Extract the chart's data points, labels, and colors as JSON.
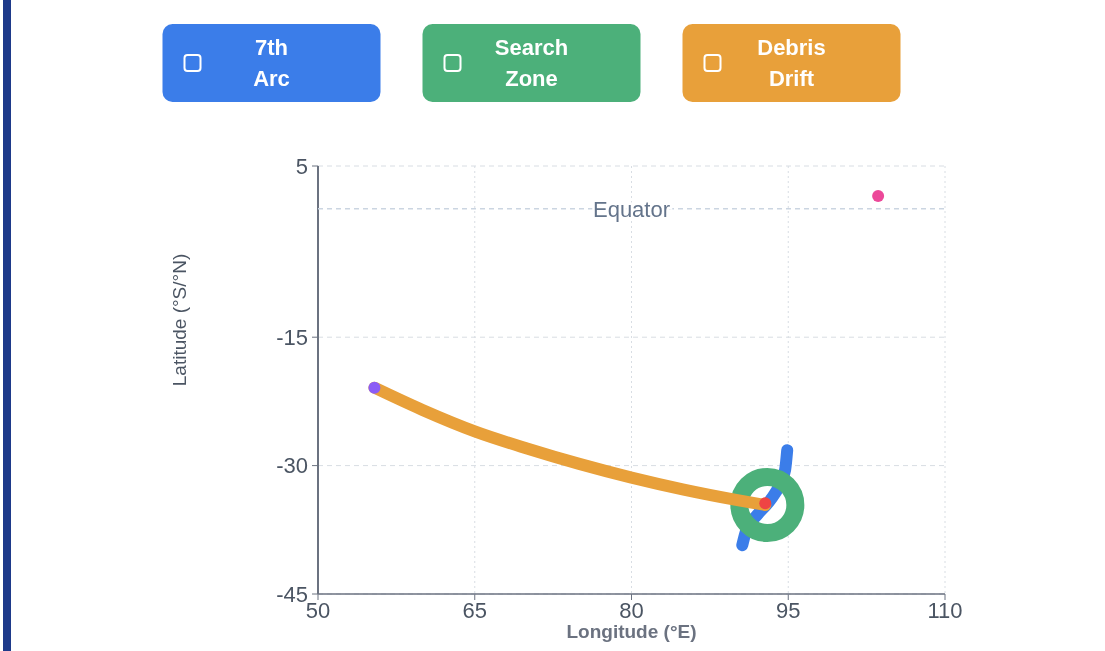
{
  "chart_data": {
    "type": "line",
    "xlabel": "Longitude (°E)",
    "ylabel": "Latitude (°S/°N)",
    "xlim": [
      50,
      110
    ],
    "xticks": [
      50,
      65,
      80,
      95,
      110
    ],
    "ylim": [
      -45,
      5
    ],
    "yticks": [
      5,
      -15,
      -30,
      -45
    ],
    "grid": true,
    "legend": "top",
    "ref_lines": [
      {
        "axis": "y",
        "value": 0,
        "label": "Equator",
        "line_style": "dashed",
        "color": "#cbd5e1"
      }
    ],
    "series": [
      {
        "name": "7th Arc",
        "color": "#3b7de9",
        "x": [
          90.6,
          91.0,
          92.0,
          93.3,
          94.2,
          94.7,
          94.9
        ],
        "values": [
          -39.3,
          -37.5,
          -35.8,
          -34.0,
          -32.2,
          -30.5,
          -28.2
        ]
      },
      {
        "name": "Search Zone",
        "type": "scatter",
        "marker": "circle",
        "color": "#4cb07a",
        "x": [
          93.0
        ],
        "values": [
          -34.6
        ]
      },
      {
        "name": "Debris Drift",
        "color": "#e8a03a",
        "x": [
          55.4,
          60,
          65,
          70,
          75,
          80,
          85,
          90,
          92.8
        ],
        "values": [
          -20.9,
          -23.5,
          -26.0,
          -28.0,
          -29.8,
          -31.4,
          -32.8,
          -34.0,
          -34.6
        ]
      },
      {
        "type": "scatter",
        "marker": "circle",
        "color": "#8b5cf6",
        "x": [
          55.4
        ],
        "values": [
          -20.9
        ]
      },
      {
        "type": "scatter",
        "marker": "circle",
        "color": "#ef4444",
        "x": [
          92.8
        ],
        "values": [
          -34.4
        ]
      },
      {
        "type": "scatter",
        "marker": "circle",
        "color": "#ec4899",
        "x": [
          103.6
        ],
        "values": [
          1.5
        ]
      }
    ]
  }
}
